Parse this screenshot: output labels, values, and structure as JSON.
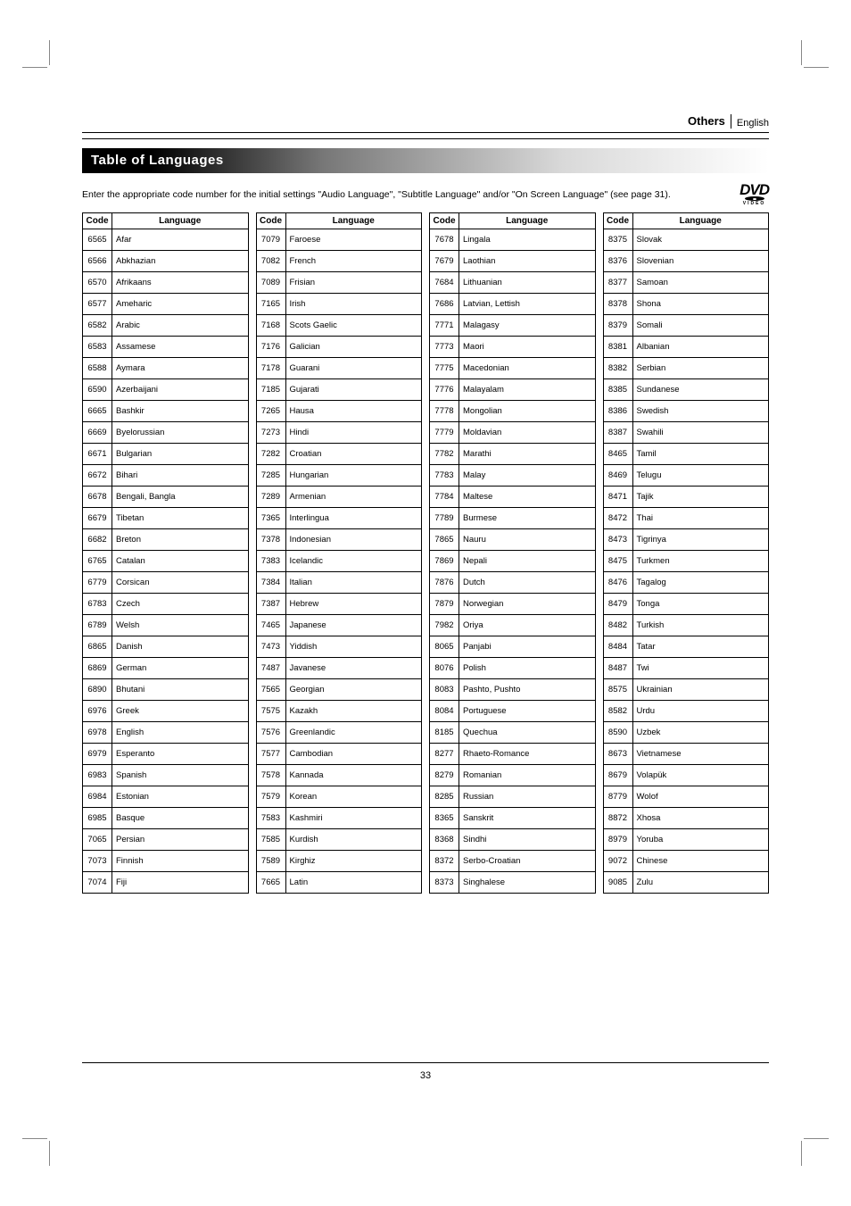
{
  "header": {
    "section": "Others",
    "language": "English"
  },
  "band_title": "Table of Languages",
  "blurb": "Enter the appropriate code number for the initial settings \"Audio Language\", \"Subtitle Language\" and/or \"On Screen Language\" (see page 31).",
  "table": {
    "columns": [
      "Code",
      "Language"
    ],
    "rows": [
      [
        "6565",
        "Afar"
      ],
      [
        "6566",
        "Abkhazian"
      ],
      [
        "6570",
        "Afrikaans"
      ],
      [
        "6577",
        "Ameharic"
      ],
      [
        "6582",
        "Arabic"
      ],
      [
        "6583",
        "Assamese"
      ],
      [
        "6588",
        "Aymara"
      ],
      [
        "6590",
        "Azerbaijani"
      ],
      [
        "6665",
        "Bashkir"
      ],
      [
        "6669",
        "Byelorussian"
      ],
      [
        "6671",
        "Bulgarian"
      ],
      [
        "6672",
        "Bihari"
      ],
      [
        "6678",
        "Bengali, Bangla"
      ],
      [
        "6679",
        "Tibetan"
      ],
      [
        "6682",
        "Breton"
      ],
      [
        "6765",
        "Catalan"
      ],
      [
        "6779",
        "Corsican"
      ],
      [
        "6783",
        "Czech"
      ],
      [
        "6789",
        "Welsh"
      ],
      [
        "6865",
        "Danish"
      ],
      [
        "6869",
        "German"
      ],
      [
        "6890",
        "Bhutani"
      ],
      [
        "6976",
        "Greek"
      ],
      [
        "6978",
        "English"
      ],
      [
        "6979",
        "Esperanto"
      ],
      [
        "6983",
        "Spanish"
      ],
      [
        "6984",
        "Estonian"
      ],
      [
        "6985",
        "Basque"
      ],
      [
        "7065",
        "Persian"
      ],
      [
        "7073",
        "Finnish"
      ],
      [
        "7074",
        "Fiji"
      ],
      [
        "7079",
        "Faroese"
      ],
      [
        "7082",
        "French"
      ],
      [
        "7089",
        "Frisian"
      ],
      [
        "7165",
        "Irish"
      ],
      [
        "7168",
        "Scots Gaelic"
      ],
      [
        "7176",
        "Galician"
      ],
      [
        "7178",
        "Guarani"
      ],
      [
        "7185",
        "Gujarati"
      ],
      [
        "7265",
        "Hausa"
      ],
      [
        "7273",
        "Hindi"
      ],
      [
        "7282",
        "Croatian"
      ],
      [
        "7285",
        "Hungarian"
      ],
      [
        "7289",
        "Armenian"
      ],
      [
        "7365",
        "Interlingua"
      ],
      [
        "7378",
        "Indonesian"
      ],
      [
        "7383",
        "Icelandic"
      ],
      [
        "7384",
        "Italian"
      ],
      [
        "7387",
        "Hebrew"
      ],
      [
        "7465",
        "Japanese"
      ],
      [
        "7473",
        "Yiddish"
      ],
      [
        "7487",
        "Javanese"
      ],
      [
        "7565",
        "Georgian"
      ],
      [
        "7575",
        "Kazakh"
      ],
      [
        "7576",
        "Greenlandic"
      ],
      [
        "7577",
        "Cambodian"
      ],
      [
        "7578",
        "Kannada"
      ],
      [
        "7579",
        "Korean"
      ],
      [
        "7583",
        "Kashmiri"
      ],
      [
        "7585",
        "Kurdish"
      ],
      [
        "7589",
        "Kirghiz"
      ],
      [
        "7665",
        "Latin"
      ],
      [
        "7678",
        "Lingala"
      ],
      [
        "7679",
        "Laothian"
      ],
      [
        "7684",
        "Lithuanian"
      ],
      [
        "7686",
        "Latvian, Lettish"
      ],
      [
        "7771",
        "Malagasy"
      ],
      [
        "7773",
        "Maori"
      ],
      [
        "7775",
        "Macedonian"
      ],
      [
        "7776",
        "Malayalam"
      ],
      [
        "7778",
        "Mongolian"
      ],
      [
        "7779",
        "Moldavian"
      ],
      [
        "7782",
        "Marathi"
      ],
      [
        "7783",
        "Malay"
      ],
      [
        "7784",
        "Maltese"
      ],
      [
        "7789",
        "Burmese"
      ],
      [
        "7865",
        "Nauru"
      ],
      [
        "7869",
        "Nepali"
      ],
      [
        "7876",
        "Dutch"
      ],
      [
        "7879",
        "Norwegian"
      ],
      [
        "7982",
        "Oriya"
      ],
      [
        "8065",
        "Panjabi"
      ],
      [
        "8076",
        "Polish"
      ],
      [
        "8083",
        "Pashto, Pushto"
      ],
      [
        "8084",
        "Portuguese"
      ],
      [
        "8185",
        "Quechua"
      ],
      [
        "8277",
        "Rhaeto-Romance"
      ],
      [
        "8279",
        "Romanian"
      ],
      [
        "8285",
        "Russian"
      ],
      [
        "8365",
        "Sanskrit"
      ],
      [
        "8368",
        "Sindhi"
      ],
      [
        "8372",
        "Serbo-Croatian"
      ],
      [
        "8373",
        "Singhalese"
      ],
      [
        "8375",
        "Slovak"
      ],
      [
        "8376",
        "Slovenian"
      ],
      [
        "8377",
        "Samoan"
      ],
      [
        "8378",
        "Shona"
      ],
      [
        "8379",
        "Somali"
      ],
      [
        "8381",
        "Albanian"
      ],
      [
        "8382",
        "Serbian"
      ],
      [
        "8385",
        "Sundanese"
      ],
      [
        "8386",
        "Swedish"
      ],
      [
        "8387",
        "Swahili"
      ],
      [
        "8465",
        "Tamil"
      ],
      [
        "8469",
        "Telugu"
      ],
      [
        "8471",
        "Tajik"
      ],
      [
        "8472",
        "Thai"
      ],
      [
        "8473",
        "Tigrinya"
      ],
      [
        "8475",
        "Turkmen"
      ],
      [
        "8476",
        "Tagalog"
      ],
      [
        "8479",
        "Tonga"
      ],
      [
        "8482",
        "Turkish"
      ],
      [
        "8484",
        "Tatar"
      ],
      [
        "8487",
        "Twi"
      ],
      [
        "8575",
        "Ukrainian"
      ],
      [
        "8582",
        "Urdu"
      ],
      [
        "8590",
        "Uzbek"
      ],
      [
        "8673",
        "Vietnamese"
      ],
      [
        "8679",
        "Volapük"
      ],
      [
        "8779",
        "Wolof"
      ],
      [
        "8872",
        "Xhosa"
      ],
      [
        "8979",
        "Yoruba"
      ],
      [
        "9072",
        "Chinese"
      ],
      [
        "9085",
        "Zulu"
      ]
    ]
  },
  "page_number": "33",
  "style": {
    "page_bg": "#ffffff",
    "text_color": "#000000",
    "crop_color": "#888888",
    "band_gradient_from": "#000000",
    "band_gradient_to": "#ffffff",
    "font_body_pt": 10.5,
    "font_table_pt": 9.5,
    "rows_per_column": 31
  }
}
